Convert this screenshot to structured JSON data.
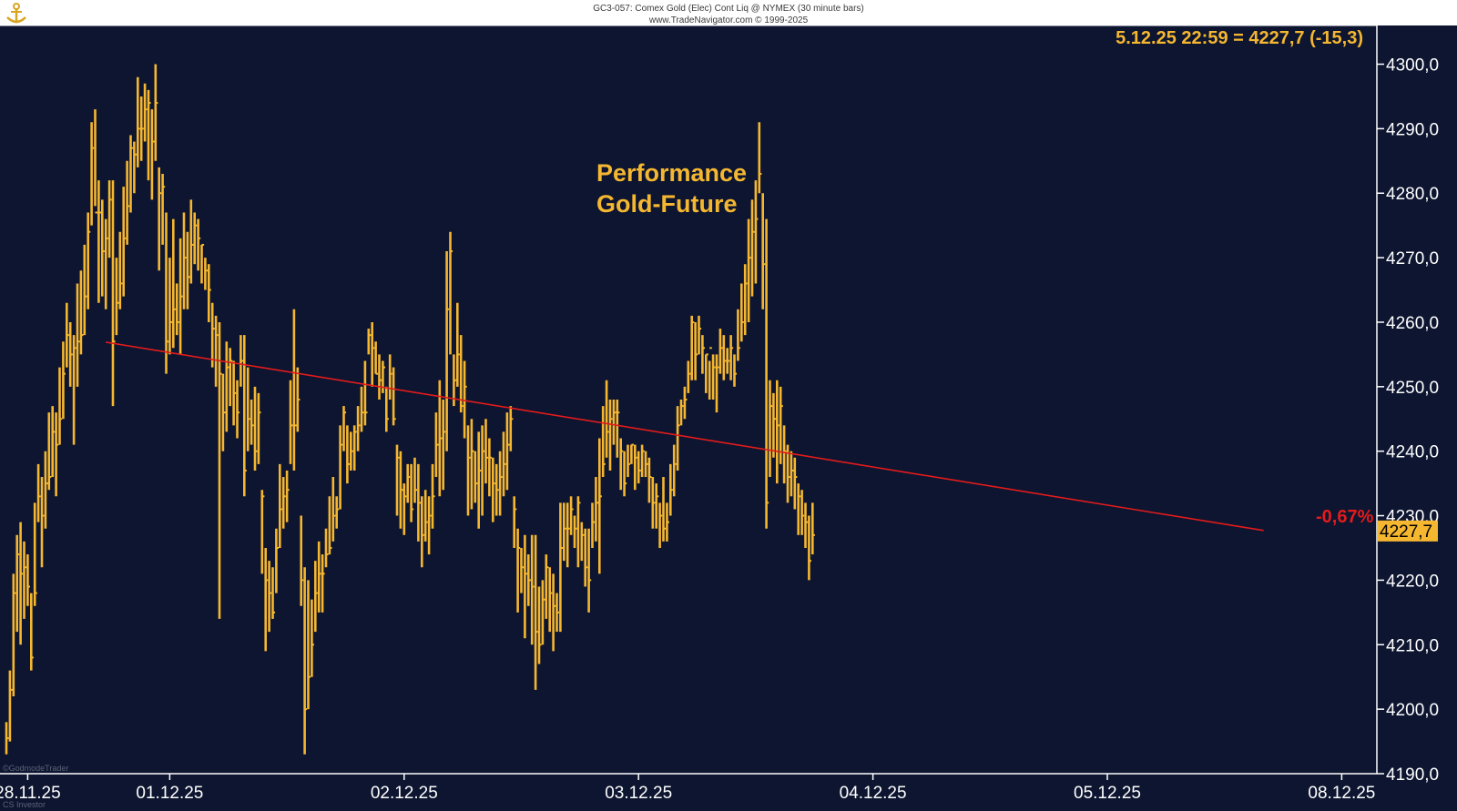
{
  "header": {
    "line1": "GC3-057: Comex Gold (Elec) Cont Liq @ NYMEX (30 minute bars)",
    "line2": "www.TradeNavigator.com © 1999-2025"
  },
  "watermark": {
    "line1": "©GodmodeTrader",
    "line2": "CS Investor"
  },
  "colors": {
    "background": "#0d1530",
    "bars": "#f5b730",
    "trendline": "#e31b1b",
    "axis": "#ffffff"
  },
  "chart_data": {
    "type": "line",
    "title": "Performance Gold-Future",
    "title_lines": [
      "Performance",
      "Gold-Future"
    ],
    "last_info": "5.12.25 22:59 = 4227,7 (-15,3)",
    "last_price_label": "4227,7",
    "performance_label": "-0,67%",
    "ylim": [
      4190,
      4306
    ],
    "y_ticks": [
      {
        "value": 4190,
        "label": "4190,0"
      },
      {
        "value": 4200,
        "label": "4200,0"
      },
      {
        "value": 4210,
        "label": "4210,0"
      },
      {
        "value": 4220,
        "label": "4220,0"
      },
      {
        "value": 4230,
        "label": "4230,0"
      },
      {
        "value": 4240,
        "label": "4240,0"
      },
      {
        "value": 4250,
        "label": "4250,0"
      },
      {
        "value": 4260,
        "label": "4260,0"
      },
      {
        "value": 4270,
        "label": "4270,0"
      },
      {
        "value": 4280,
        "label": "4280,0"
      },
      {
        "value": 4290,
        "label": "4290,0"
      },
      {
        "value": 4300,
        "label": "4300,0"
      }
    ],
    "x_ticks": [
      {
        "t": 6,
        "label": "28.11.25"
      },
      {
        "t": 46,
        "label": "01.12.25"
      },
      {
        "t": 112,
        "label": "02.12.25"
      },
      {
        "t": 178,
        "label": "03.12.25"
      },
      {
        "t": 244,
        "label": "04.12.25"
      },
      {
        "t": 310,
        "label": "05.12.25"
      },
      {
        "t": 376,
        "label": "08.12.25"
      }
    ],
    "bars_30min": [
      [
        4195.5,
        4193,
        4198
      ],
      [
        4203,
        4195,
        4206
      ],
      [
        4218,
        4202,
        4221
      ],
      [
        4224,
        4212,
        4227
      ],
      [
        4221,
        4210,
        4229
      ],
      [
        4222,
        4214,
        4226
      ],
      [
        4219,
        4216,
        4224
      ],
      [
        4208,
        4206,
        4218
      ],
      [
        4218,
        4216,
        4232
      ],
      [
        4233,
        4229,
        4238
      ],
      [
        4230,
        4222,
        4236
      ],
      [
        4235,
        4228,
        4240
      ],
      [
        4236,
        4234,
        4246
      ],
      [
        4243,
        4236,
        4247
      ],
      [
        4241,
        4233,
        4246
      ],
      [
        4245,
        4241,
        4253
      ],
      [
        4252,
        4245,
        4257
      ],
      [
        4258,
        4253,
        4263
      ],
      [
        4255,
        4250,
        4260
      ],
      [
        4256,
        4241,
        4258
      ],
      [
        4257,
        4250,
        4266
      ],
      [
        4258,
        4255,
        4268
      ],
      [
        4264,
        4258,
        4272
      ],
      [
        4274,
        4262,
        4277
      ],
      [
        4287,
        4275,
        4291
      ],
      [
        4277,
        4278,
        4293
      ],
      [
        4277,
        4263,
        4282
      ],
      [
        4271,
        4264,
        4279
      ],
      [
        4273,
        4262,
        4276
      ],
      [
        4279,
        4270,
        4282
      ],
      [
        4257,
        4247,
        4282
      ],
      [
        4263,
        4258,
        4270
      ],
      [
        4266,
        4262,
        4274
      ],
      [
        4273,
        4264,
        4281
      ],
      [
        4278,
        4272,
        4285
      ],
      [
        4287,
        4277,
        4289
      ],
      [
        4286,
        4280,
        4288
      ],
      [
        4290,
        4284,
        4298
      ],
      [
        4290,
        4285,
        4295
      ],
      [
        4293,
        4288,
        4297
      ],
      [
        4294,
        4282,
        4296
      ],
      [
        4288,
        4279,
        4293
      ],
      [
        4294,
        4285,
        4300
      ],
      [
        4280,
        4268,
        4284
      ],
      [
        4281,
        4272,
        4283
      ],
      [
        4257,
        4252,
        4277
      ],
      [
        4260,
        4255,
        4270
      ],
      [
        4262,
        4256,
        4276
      ],
      [
        4260,
        4258,
        4266
      ],
      [
        4264,
        4255,
        4273
      ],
      [
        4270,
        4262,
        4277
      ],
      [
        4267,
        4262,
        4274
      ],
      [
        4272,
        4266,
        4279
      ],
      [
        4275,
        4269,
        4277
      ],
      [
        4273,
        4268,
        4276
      ],
      [
        4272,
        4266,
        4272
      ],
      [
        4268,
        4265,
        4270
      ],
      [
        4265,
        4260,
        4269
      ],
      [
        4259,
        4253,
        4263
      ],
      [
        4258,
        4250,
        4261
      ],
      [
        4252,
        4214,
        4260
      ],
      [
        4246,
        4240,
        4252
      ],
      [
        4253,
        4243,
        4257
      ],
      [
        4254,
        4247,
        4256
      ],
      [
        4249,
        4244,
        4254
      ],
      [
        4246,
        4242,
        4251
      ],
      [
        4254,
        4250,
        4258
      ],
      [
        4237,
        4233,
        4258
      ],
      [
        4245,
        4240,
        4253
      ],
      [
        4244,
        4241,
        4248
      ],
      [
        4240,
        4237,
        4250
      ],
      [
        4246,
        4238,
        4249
      ],
      [
        4233,
        4221,
        4234
      ],
      [
        4220,
        4209,
        4225
      ],
      [
        4218,
        4212,
        4223
      ],
      [
        4215,
        4214,
        4222
      ],
      [
        4225,
        4218,
        4228
      ],
      [
        4231,
        4225,
        4238
      ],
      [
        4233,
        4228,
        4236
      ],
      [
        4234,
        4229,
        4237
      ],
      [
        4244,
        4238,
        4251
      ],
      [
        4244,
        4237,
        4262
      ],
      [
        4248,
        4243,
        4253
      ],
      [
        4220,
        4216,
        4230
      ],
      [
        4200,
        4193,
        4222
      ],
      [
        4205,
        4200,
        4220
      ],
      [
        4210,
        4205,
        4217
      ],
      [
        4218,
        4212,
        4223
      ],
      [
        4221,
        4215,
        4226
      ],
      [
        4221,
        4215,
        4224
      ],
      [
        4224,
        4222,
        4228
      ],
      [
        4225,
        4224,
        4233
      ],
      [
        4230,
        4226,
        4236
      ],
      [
        4231,
        4228,
        4233
      ],
      [
        4241,
        4231,
        4244
      ],
      [
        4246,
        4240,
        4247
      ],
      [
        4238,
        4235,
        4244
      ],
      [
        4240,
        4237,
        4243
      ],
      [
        4243,
        4237,
        4244
      ],
      [
        4244,
        4240,
        4247
      ],
      [
        4246,
        4243,
        4250
      ],
      [
        4246,
        4244,
        4254
      ],
      [
        4258,
        4255,
        4259
      ],
      [
        4256,
        4250,
        4260
      ],
      [
        4252,
        4252,
        4257
      ],
      [
        4251,
        4248,
        4255
      ],
      [
        4253,
        4249,
        4254
      ],
      [
        4245,
        4243,
        4250
      ],
      [
        4252,
        4248,
        4255
      ],
      [
        4245,
        4244,
        4253
      ],
      [
        4239,
        4230,
        4241
      ],
      [
        4234,
        4228,
        4240
      ],
      [
        4233,
        4227,
        4235
      ],
      [
        4236,
        4232,
        4238
      ],
      [
        4231,
        4229,
        4238
      ],
      [
        4234,
        4232,
        4239
      ],
      [
        4232,
        4226,
        4238
      ],
      [
        4227,
        4222,
        4233
      ],
      [
        4229,
        4226,
        4234
      ],
      [
        4230,
        4224,
        4233
      ],
      [
        4233,
        4228,
        4238
      ],
      [
        4241,
        4236,
        4246
      ],
      [
        4242,
        4233,
        4251
      ],
      [
        4243,
        4234,
        4248
      ],
      [
        4262,
        4240,
        4271
      ],
      [
        4271,
        4255,
        4274
      ],
      [
        4251,
        4247,
        4255
      ],
      [
        4255,
        4250,
        4263
      ],
      [
        4247,
        4246,
        4258
      ],
      [
        4250,
        4242,
        4254
      ],
      [
        4239,
        4230,
        4244
      ],
      [
        4240,
        4231,
        4245
      ],
      [
        4235,
        4232,
        4240
      ],
      [
        4237,
        4228,
        4243
      ],
      [
        4240,
        4230,
        4244
      ],
      [
        4239,
        4235,
        4245
      ],
      [
        4239,
        4233,
        4242
      ],
      [
        4235,
        4229,
        4239
      ],
      [
        4234,
        4230,
        4238
      ],
      [
        4236,
        4230,
        4240
      ],
      [
        4238,
        4233,
        4243
      ],
      [
        4241,
        4234,
        4246
      ],
      [
        4245,
        4240,
        4247
      ],
      [
        4231,
        4225,
        4233
      ],
      [
        4225,
        4215,
        4228
      ],
      [
        4222,
        4218,
        4225
      ],
      [
        4221,
        4211,
        4227
      ],
      [
        4220,
        4216,
        4224
      ],
      [
        4219,
        4210,
        4227
      ],
      [
        4212,
        4203,
        4227
      ],
      [
        4210,
        4207,
        4219
      ],
      [
        4217,
        4210,
        4220
      ],
      [
        4222,
        4214,
        4224
      ],
      [
        4218,
        4212,
        4222
      ],
      [
        4216,
        4209,
        4221
      ],
      [
        4215,
        4212,
        4218
      ],
      [
        4225,
        4212,
        4232
      ],
      [
        4228,
        4223,
        4232
      ],
      [
        4228,
        4222,
        4232
      ],
      [
        4231,
        4227,
        4233
      ],
      [
        4228,
        4225,
        4230
      ],
      [
        4232,
        4222,
        4233
      ],
      [
        4227,
        4223,
        4229
      ],
      [
        4222,
        4219,
        4228
      ],
      [
        4220,
        4215,
        4228
      ],
      [
        4229,
        4225,
        4232
      ],
      [
        4232,
        4226,
        4236
      ],
      [
        4233,
        4221,
        4242
      ],
      [
        4238,
        4236,
        4247
      ],
      [
        4243,
        4239,
        4251
      ],
      [
        4245,
        4237,
        4248
      ],
      [
        4246,
        4241,
        4248
      ],
      [
        4246,
        4239,
        4248
      ],
      [
        4240,
        4234,
        4242
      ],
      [
        4235,
        4233,
        4240
      ],
      [
        4238,
        4236,
        4241
      ],
      [
        4241,
        4238,
        4241
      ],
      [
        4239,
        4234,
        4241
      ],
      [
        4237,
        4235,
        4240
      ],
      [
        4240,
        4236,
        4241
      ],
      [
        4238,
        4236,
        4240
      ],
      [
        4236,
        4232,
        4239
      ],
      [
        4232,
        4228,
        4236
      ],
      [
        4233,
        4228,
        4235
      ],
      [
        4230,
        4225,
        4232
      ],
      [
        4228,
        4226,
        4236
      ],
      [
        4229,
        4226,
        4232
      ],
      [
        4234,
        4230,
        4238
      ],
      [
        4238,
        4233,
        4241
      ],
      [
        4244,
        4237,
        4247
      ],
      [
        4247,
        4244,
        4248
      ],
      [
        4248,
        4245,
        4250
      ],
      [
        4252,
        4249,
        4254
      ],
      [
        4260,
        4251,
        4261
      ],
      [
        4255,
        4251,
        4260
      ],
      [
        4259,
        4255,
        4261
      ],
      [
        4256,
        4252,
        4258
      ],
      [
        4255,
        4249,
        4255
      ],
      [
        4256,
        4248,
        4254
      ],
      [
        4253,
        4248,
        4255
      ],
      [
        4253,
        4246,
        4255
      ],
      [
        4256,
        4252,
        4259
      ],
      [
        4254,
        4251,
        4258
      ],
      [
        4254,
        4252,
        4256
      ],
      [
        4256,
        4251,
        4258
      ],
      [
        4252,
        4250,
        4255
      ],
      [
        4256,
        4254,
        4262
      ],
      [
        4260,
        4257,
        4266
      ],
      [
        4266,
        4258,
        4269
      ],
      [
        4270,
        4260,
        4276
      ],
      [
        4274,
        4264,
        4279
      ],
      [
        4276,
        4266,
        4282
      ],
      [
        4283,
        4280,
        4291
      ],
      [
        4269,
        4262,
        4280
      ],
      [
        4232,
        4228,
        4276
      ],
      [
        4247,
        4236,
        4251
      ],
      [
        4245,
        4239,
        4249
      ],
      [
        4244,
        4235,
        4251
      ],
      [
        4247,
        4238,
        4250
      ],
      [
        4240,
        4235,
        4244
      ],
      [
        4236,
        4232,
        4241
      ],
      [
        4237,
        4233,
        4240
      ],
      [
        4236,
        4231,
        4239
      ],
      [
        4233,
        4227,
        4235
      ],
      [
        4230,
        4227,
        4234
      ],
      [
        4229,
        4225,
        4232
      ],
      [
        4223,
        4220,
        4230
      ],
      [
        4227,
        4224,
        4232
      ]
    ],
    "trendline": {
      "from": {
        "t": 28,
        "value": 4256.9
      },
      "to": {
        "t": 354,
        "value": 4227.7
      }
    }
  }
}
